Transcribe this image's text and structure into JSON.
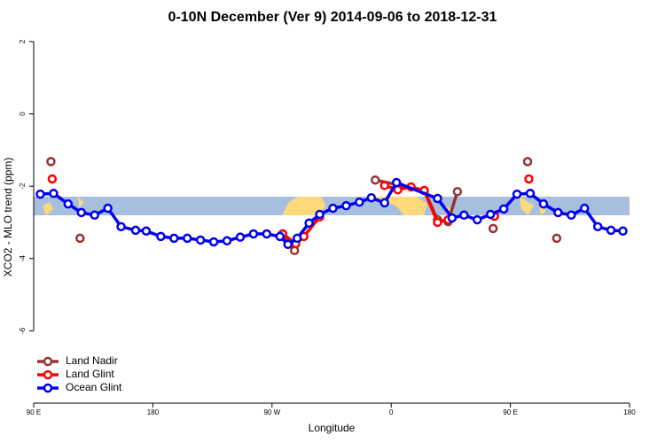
{
  "chart_data": {
    "type": "line",
    "title": "0-10N December (Ver 9)   2014-09-06 to 2018-12-31",
    "xlabel": "Longitude",
    "ylabel": "XCO2 - MLO trend (ppm)",
    "xlim": [
      90,
      540
    ],
    "ylim": [
      -8,
      2.5
    ],
    "xticks": [
      {
        "value": 90,
        "label": "90 E"
      },
      180,
      {
        "value": 270,
        "label": "90 W"
      },
      {
        "value": 360,
        "label": "0"
      },
      {
        "value": 450,
        "label": "90 E"
      },
      {
        "value": 540,
        "label": "180"
      }
    ],
    "yticks": [
      2,
      0,
      -2,
      -4,
      -6
    ],
    "legend": "bottom-left",
    "series": [
      {
        "name": "Land Nadir",
        "color": "#993333",
        "x": [
          103,
          null,
          125,
          null,
          278,
          287,
          null,
          348,
          385,
          395,
          403,
          410,
          null,
          437,
          null,
          463,
          null,
          485
        ],
        "values": [
          -1.32,
          null,
          -3.44,
          null,
          -3.32,
          -3.78,
          null,
          -1.83,
          -2.12,
          -2.93,
          -2.98,
          -2.15,
          null,
          -3.17,
          null,
          -1.32,
          null,
          -3.44
        ]
      },
      {
        "name": "Land Glint",
        "color": "#ff0000",
        "x": [
          104,
          null,
          278,
          288,
          294,
          306,
          null,
          355,
          365,
          375,
          385,
          395,
          403,
          null,
          438,
          null,
          464
        ],
        "values": [
          -1.8,
          null,
          -3.32,
          -3.59,
          -3.39,
          -2.85,
          null,
          -1.98,
          -2.1,
          -2.02,
          -2.12,
          -3.0,
          -2.93,
          null,
          -2.83,
          null,
          -1.8
        ]
      },
      {
        "name": "Ocean Glint",
        "color": "#0000ee",
        "x": [
          95,
          105,
          116,
          126,
          136,
          146,
          156,
          167,
          175,
          186,
          196,
          206,
          216,
          226,
          236,
          246,
          256,
          266,
          276,
          282,
          289,
          298,
          306,
          316,
          326,
          336,
          345,
          355,
          364,
          395,
          406,
          415,
          425,
          435,
          445,
          455,
          465,
          475,
          486,
          496,
          506,
          516,
          526,
          535
        ],
        "values": [
          -2.22,
          -2.2,
          -2.49,
          -2.73,
          -2.8,
          -2.61,
          -3.12,
          -3.22,
          -3.24,
          -3.39,
          -3.44,
          -3.44,
          -3.49,
          -3.54,
          -3.51,
          -3.41,
          -3.32,
          -3.32,
          -3.39,
          -3.61,
          -3.44,
          -3.02,
          -2.78,
          -2.61,
          -2.54,
          -2.44,
          -2.32,
          -2.46,
          -1.9,
          -2.34,
          -2.88,
          -2.8,
          -2.93,
          -2.78,
          -2.63,
          -2.22,
          -2.2,
          -2.49,
          -2.73,
          -2.8,
          -2.61,
          -3.12,
          -3.22,
          -3.24
        ]
      }
    ]
  }
}
